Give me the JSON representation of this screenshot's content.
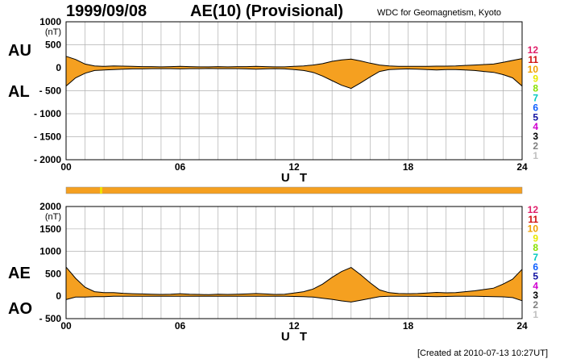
{
  "header": {
    "date": "1999/09/08",
    "title": "AE(10) (Provisional)",
    "source": "WDC for Geomagnetism, Kyoto"
  },
  "footer": {
    "created": "[Created at 2010-07-13 10:27UT]"
  },
  "colors": {
    "fill": "#f5a020",
    "line": "#000000",
    "grid": "#b0b0b0"
  },
  "stations": {
    "labels": [
      "12",
      "11",
      "10",
      "9",
      "8",
      "7",
      "6",
      "5",
      "4",
      "3",
      "2",
      "1"
    ],
    "colors": [
      "#e0206a",
      "#d01010",
      "#f0a000",
      "#e8e800",
      "#88e000",
      "#00c8c0",
      "#1060ff",
      "#1010a0",
      "#d000d0",
      "#000000",
      "#808080",
      "#c0c0c0"
    ]
  },
  "chart_data": [
    {
      "type": "area",
      "panel": "AU/AL",
      "left_labels": [
        "AU",
        "AL"
      ],
      "units": "(nT)",
      "xlabel": "U T",
      "xticks": [
        "00",
        "06",
        "12",
        "18",
        "24"
      ],
      "xlim": [
        0,
        24
      ],
      "ylim": [
        -2000,
        1000
      ],
      "yticks": [
        1000,
        500,
        0,
        -500,
        -1000,
        -1500,
        -2000
      ],
      "grid": true,
      "x": [
        0,
        0.5,
        1,
        1.5,
        2,
        2.5,
        3,
        3.5,
        4,
        4.5,
        5,
        5.5,
        6,
        6.5,
        7,
        7.5,
        8,
        8.5,
        9,
        9.5,
        10,
        10.5,
        11,
        11.5,
        12,
        12.5,
        13,
        13.5,
        14,
        14.5,
        15,
        15.5,
        16,
        16.5,
        17,
        17.5,
        18,
        18.5,
        19,
        19.5,
        20,
        20.5,
        21,
        21.5,
        22,
        22.5,
        23,
        23.5,
        24
      ],
      "series": [
        {
          "name": "AU",
          "values": [
            250,
            180,
            80,
            40,
            30,
            40,
            35,
            30,
            25,
            25,
            20,
            25,
            30,
            25,
            20,
            20,
            25,
            20,
            25,
            25,
            30,
            25,
            20,
            20,
            30,
            40,
            60,
            90,
            140,
            170,
            190,
            150,
            100,
            60,
            40,
            30,
            30,
            30,
            30,
            35,
            35,
            40,
            50,
            60,
            70,
            80,
            120,
            160,
            200
          ]
        },
        {
          "name": "AL",
          "values": [
            -400,
            -220,
            -120,
            -60,
            -50,
            -40,
            -30,
            -25,
            -25,
            -20,
            -20,
            -20,
            -25,
            -20,
            -20,
            -15,
            -20,
            -20,
            -20,
            -25,
            -30,
            -25,
            -20,
            -25,
            -40,
            -60,
            -100,
            -180,
            -280,
            -380,
            -450,
            -330,
            -200,
            -80,
            -40,
            -30,
            -25,
            -30,
            -40,
            -50,
            -40,
            -40,
            -50,
            -60,
            -80,
            -100,
            -150,
            -220,
            -400
          ]
        }
      ]
    },
    {
      "type": "area",
      "panel": "AE/AO",
      "left_labels": [
        "AE",
        "AO"
      ],
      "units": "(nT)",
      "xlabel": "U T",
      "xticks": [
        "00",
        "06",
        "12",
        "18",
        "24"
      ],
      "xlim": [
        0,
        24
      ],
      "ylim": [
        -500,
        2000
      ],
      "yticks": [
        2000,
        1500,
        1000,
        500,
        0,
        -500
      ],
      "grid": true,
      "x": [
        0,
        0.5,
        1,
        1.5,
        2,
        2.5,
        3,
        3.5,
        4,
        4.5,
        5,
        5.5,
        6,
        6.5,
        7,
        7.5,
        8,
        8.5,
        9,
        9.5,
        10,
        10.5,
        11,
        11.5,
        12,
        12.5,
        13,
        13.5,
        14,
        14.5,
        15,
        15.5,
        16,
        16.5,
        17,
        17.5,
        18,
        18.5,
        19,
        19.5,
        20,
        20.5,
        21,
        21.5,
        22,
        22.5,
        23,
        23.5,
        24
      ],
      "series": [
        {
          "name": "AE",
          "values": [
            650,
            400,
            200,
            100,
            80,
            80,
            65,
            55,
            50,
            45,
            40,
            45,
            55,
            45,
            40,
            35,
            45,
            40,
            45,
            50,
            60,
            50,
            40,
            45,
            70,
            100,
            160,
            270,
            420,
            550,
            640,
            480,
            300,
            140,
            80,
            60,
            55,
            60,
            70,
            85,
            75,
            80,
            100,
            120,
            150,
            180,
            270,
            380,
            600
          ]
        },
        {
          "name": "AO",
          "values": [
            -75,
            -20,
            -20,
            -10,
            -10,
            0,
            0,
            0,
            0,
            0,
            0,
            0,
            0,
            0,
            0,
            0,
            0,
            0,
            0,
            0,
            0,
            0,
            0,
            0,
            -5,
            -10,
            -20,
            -45,
            -70,
            -105,
            -130,
            -90,
            -50,
            -10,
            0,
            0,
            0,
            0,
            -5,
            -10,
            -5,
            0,
            0,
            0,
            -5,
            -10,
            -15,
            -30,
            -100
          ]
        }
      ]
    }
  ]
}
